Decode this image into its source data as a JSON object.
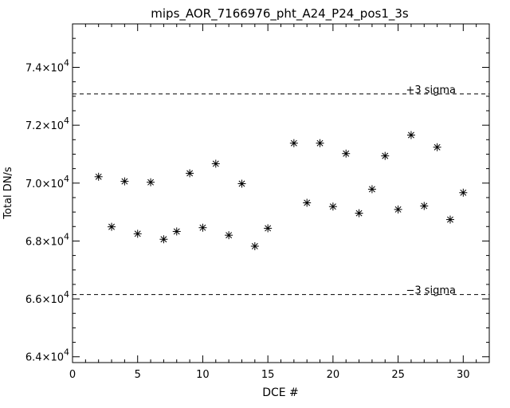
{
  "chart_data": {
    "type": "scatter",
    "title": "mips_AOR_7166976_pht_A24_P24_pos1_3s",
    "xlabel": "DCE #",
    "ylabel": "Total DN/s",
    "xlim": [
      0,
      32
    ],
    "ylim": [
      63800,
      75500
    ],
    "x_ticks": [
      0,
      5,
      10,
      15,
      20,
      25,
      30
    ],
    "y_ticks": [
      {
        "value": 64000,
        "mantissa": "6.4",
        "exp": "4"
      },
      {
        "value": 66000,
        "mantissa": "6.6",
        "exp": "4"
      },
      {
        "value": 68000,
        "mantissa": "6.8",
        "exp": "4"
      },
      {
        "value": 70000,
        "mantissa": "7.0",
        "exp": "4"
      },
      {
        "value": 72000,
        "mantissa": "7.2",
        "exp": "4"
      },
      {
        "value": 74000,
        "mantissa": "7.4",
        "exp": "4"
      }
    ],
    "tick_mantissa_separator": "×10",
    "marker": "asterisk",
    "grid": false,
    "series": [
      {
        "x": [
          2,
          3,
          4,
          5,
          6,
          7,
          8,
          9,
          10,
          11,
          12,
          13,
          14,
          15,
          17,
          18,
          19,
          20,
          21,
          22,
          23,
          24,
          25,
          26,
          27,
          28,
          29,
          30
        ],
        "y": [
          70220,
          68490,
          70060,
          68250,
          70030,
          68060,
          68330,
          70340,
          68460,
          70670,
          68200,
          69980,
          67820,
          68440,
          71380,
          69320,
          71380,
          69190,
          71020,
          68960,
          69790,
          70940,
          69090,
          71660,
          69210,
          71240,
          68740,
          69670
        ]
      }
    ],
    "reference_lines": [
      {
        "value": 73080,
        "label": "+3 sigma",
        "style": "dashed"
      },
      {
        "value": 66150,
        "label": "−3 sigma",
        "style": "dashed"
      }
    ]
  }
}
